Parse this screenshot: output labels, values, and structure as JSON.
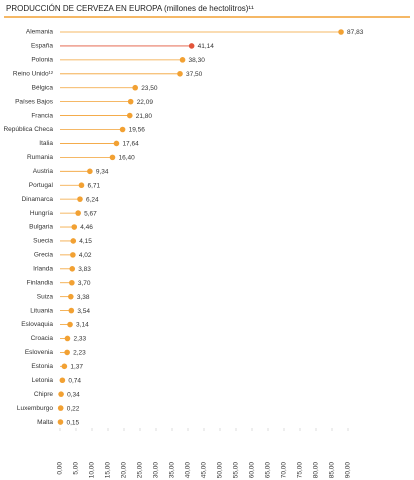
{
  "chart_data": {
    "type": "lollipop",
    "title": "PRODUCCIÓN DE CERVEZA EN EUROPA (millones de hectolitros)¹¹",
    "categories": [
      "Alemania",
      "España",
      "Polonia",
      "Reino Unido¹²",
      "Bélgica",
      "Países Bajos",
      "Francia",
      "República Checa",
      "Italia",
      "Rumania",
      "Austria",
      "Portugal",
      "Dinamarca",
      "Hungría",
      "Bulgaria",
      "Suecia",
      "Grecia",
      "Irlanda",
      "Finlandia",
      "Suiza",
      "Lituania",
      "Eslovaquia",
      "Croacia",
      "Eslovenia",
      "Estonia",
      "Letonia",
      "Chipre",
      "Luxemburgo",
      "Malta"
    ],
    "values": [
      87.83,
      41.14,
      38.3,
      37.5,
      23.5,
      22.09,
      21.8,
      19.56,
      17.64,
      16.4,
      9.34,
      6.71,
      6.24,
      5.67,
      4.46,
      4.15,
      4.02,
      3.83,
      3.7,
      3.38,
      3.54,
      3.14,
      2.33,
      2.23,
      1.37,
      0.74,
      0.34,
      0.22,
      0.15
    ],
    "value_labels": [
      "87,83",
      "41,14",
      "38,30",
      "37,50",
      "23,50",
      "22,09",
      "21,80",
      "19,56",
      "17,64",
      "16,40",
      "9,34",
      "6,71",
      "6,24",
      "5,67",
      "4,46",
      "4,15",
      "4,02",
      "3,83",
      "3,70",
      "3,38",
      "3,54",
      "3,14",
      "2,33",
      "2,23",
      "1,37",
      "0,74",
      "0,34",
      "0,22",
      "0,15"
    ],
    "color": "#f2a133",
    "highlight_color": "#e2553a",
    "highlight_index": 1,
    "xlim": [
      0,
      90
    ],
    "xticks": [
      {
        "value": 0,
        "label": "0,00"
      },
      {
        "value": 5,
        "label": "5,00"
      },
      {
        "value": 10,
        "label": "10,00"
      },
      {
        "value": 15,
        "label": "15,00"
      },
      {
        "value": 20,
        "label": "20,00"
      },
      {
        "value": 25,
        "label": "25,00"
      },
      {
        "value": 30,
        "label": "30,00"
      },
      {
        "value": 35,
        "label": "35,00"
      },
      {
        "value": 40,
        "label": "40,00"
      },
      {
        "value": 45,
        "label": "45,00"
      },
      {
        "value": 50,
        "label": "50,00"
      },
      {
        "value": 55,
        "label": "55,00"
      },
      {
        "value": 60,
        "label": "60,00"
      },
      {
        "value": 65,
        "label": "65,00"
      },
      {
        "value": 70,
        "label": "70,00"
      },
      {
        "value": 75,
        "label": "75,00"
      },
      {
        "value": 80,
        "label": "80,00"
      },
      {
        "value": 85,
        "label": "85,00"
      },
      {
        "value": 90,
        "label": "90,00"
      }
    ]
  }
}
